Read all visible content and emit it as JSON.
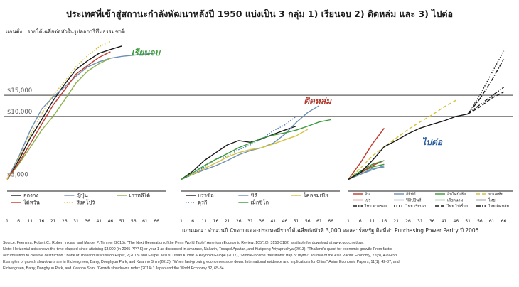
{
  "chart_data": {
    "type": "line",
    "title": "ประเทศที่เข้าสู่สถานะกำลังพัฒนาหลังปี 1950 แบ่งเป็น 3 กลุ่ม 1) เรียนจบ 2) ติดหล่ม และ 3) ไปต่อ",
    "ylabel": "แกนตั้ง : รายได้เฉลี่ยต่อหัวในรูปลอการิทึมธรรมชาติ",
    "xlabel": "แกนนอน : จำนวนปี นับจากแต่ละประเทศมีรายได้เฉลี่ยต่อหัวที่ 3,000 ดอลลาร์สหรัฐ ติดที่ค่า Purchasing Power Parity ปี 2005",
    "y_scale": "log",
    "y_ticks": [
      "$3,000",
      "$10,000",
      "$15,000"
    ],
    "y_tick_values": [
      3000,
      10000,
      15000
    ],
    "ylim": [
      2600,
      40000
    ],
    "x_ticks": [
      "1",
      "6",
      "11",
      "16",
      "21",
      "26",
      "31",
      "36",
      "41",
      "46",
      "51",
      "56",
      "61",
      "66"
    ],
    "xlim": [
      1,
      70
    ],
    "grid": false,
    "panels": [
      {
        "label": "เรียนจบ",
        "series": [
          {
            "name": "ฮ่องกง",
            "color": "#1a1a1a",
            "dash": "solid",
            "x": [
              1,
              6,
              11,
              16,
              21,
              26,
              31,
              36,
              41,
              46,
              51
            ],
            "y": [
              3000,
              4300,
              6600,
              9400,
              13500,
              18500,
              24500,
              29000,
              33500,
              36000,
              38500
            ]
          },
          {
            "name": "ญี่ปุ่น",
            "color": "#6b8fb5",
            "dash": "solid",
            "x": [
              1,
              6,
              11,
              16,
              21,
              26,
              31,
              36,
              41,
              46,
              51,
              56,
              61,
              66
            ],
            "y": [
              3000,
              4600,
              7600,
              11500,
              14500,
              17600,
              21600,
              25800,
              28500,
              30500,
              31600,
              32300,
              33000,
              33700
            ]
          },
          {
            "name": "เกาหลีใต้",
            "color": "#8bb34d",
            "dash": "solid",
            "x": [
              1,
              6,
              11,
              16,
              21,
              26,
              31,
              36,
              41,
              46
            ],
            "y": [
              3000,
              4000,
              5500,
              7700,
              10000,
              13700,
              19000,
              23800,
              27500,
              30500
            ]
          },
          {
            "name": "ไต้หวัน",
            "color": "#c0392b",
            "dash": "solid",
            "x": [
              1,
              6,
              11,
              16,
              21,
              26,
              31,
              36,
              41,
              46
            ],
            "y": [
              3000,
              4100,
              5900,
              8600,
              12400,
              16600,
              22500,
              26500,
              31000,
              34500
            ]
          },
          {
            "name": "สิงคโปร์",
            "color": "#d4c23a",
            "dash": "dot",
            "x": [
              1,
              6,
              11,
              16,
              21,
              26,
              31,
              36,
              41,
              46
            ],
            "y": [
              3000,
              4500,
              7000,
              10500,
              15000,
              19500,
              26000,
              32000,
              38000,
              42000
            ]
          }
        ]
      },
      {
        "label": "ติดหล่ม",
        "series": [
          {
            "name": "บราซิล",
            "color": "#1a1a1a",
            "dash": "solid",
            "x": [
              1,
              6,
              11,
              16,
              21,
              26,
              31,
              36,
              41,
              46,
              51
            ],
            "y": [
              3000,
              3500,
              4300,
              5000,
              5800,
              6300,
              6100,
              6500,
              7100,
              7700,
              8300
            ]
          },
          {
            "name": "ชิลี",
            "color": "#6b8fb5",
            "dash": "solid",
            "x": [
              1,
              6,
              11,
              16,
              21,
              26,
              31,
              36,
              41,
              46,
              51,
              56,
              61
            ],
            "y": [
              3000,
              3300,
              3600,
              3900,
              4300,
              4800,
              5200,
              5500,
              6000,
              7100,
              8900,
              10800,
              12300
            ]
          },
          {
            "name": "โคลอมเบีย",
            "color": "#d4c23a",
            "dash": "solid",
            "x": [
              1,
              6,
              11,
              16,
              21,
              26,
              31,
              36,
              41,
              46,
              51,
              56
            ],
            "y": [
              3000,
              3300,
              3700,
              4100,
              4600,
              5000,
              5300,
              5500,
              5900,
              6400,
              6900,
              7800
            ]
          },
          {
            "name": "ตุรกี",
            "color": "#4a7fc1",
            "dash": "dot",
            "x": [
              1,
              6,
              11,
              16,
              21,
              26,
              31,
              36,
              41,
              46,
              51
            ],
            "y": [
              3000,
              3300,
              3800,
              4400,
              4700,
              5300,
              5800,
              6500,
              7600,
              8500,
              10000
            ]
          },
          {
            "name": "เม็กซิโก",
            "color": "#3a9a3a",
            "dash": "solid",
            "x": [
              1,
              6,
              11,
              16,
              21,
              26,
              31,
              36,
              41,
              46,
              51,
              56,
              61,
              66
            ],
            "y": [
              3000,
              3400,
              3900,
              4400,
              4900,
              5500,
              6000,
              6600,
              7000,
              7300,
              7700,
              8300,
              9000,
              9400
            ]
          }
        ]
      },
      {
        "label": "ไปต่อ",
        "series": [
          {
            "name": "จีน",
            "color": "#c0392b",
            "dash": "solid",
            "x": [
              1,
              6,
              11,
              16
            ],
            "y": [
              3000,
              4100,
              5900,
              8000
            ]
          },
          {
            "name": "อียิปต์",
            "color": "#6b8fb5",
            "dash": "solid",
            "x": [
              1,
              6,
              11,
              16
            ],
            "y": [
              3000,
              3300,
              3700,
              3800
            ]
          },
          {
            "name": "อินโดนีเซีย",
            "color": "#3a9a3a",
            "dash": "solid",
            "x": [
              1,
              6,
              11,
              16
            ],
            "y": [
              3000,
              3400,
              3800,
              4000
            ]
          },
          {
            "name": "มาเลเซีย",
            "color": "#d4c23a",
            "dash": "dash",
            "x": [
              1,
              6,
              11,
              16,
              21,
              26,
              31,
              36,
              41,
              46
            ],
            "y": [
              3000,
              3700,
              4700,
              5600,
              6600,
              7800,
              9000,
              10300,
              12000,
              13600
            ]
          },
          {
            "name": "เปรู",
            "color": "#c0392b",
            "dash": "solid",
            "x": [
              1,
              6,
              11,
              16
            ],
            "y": [
              3000,
              3400,
              3900,
              4300
            ]
          },
          {
            "name": "ฟิลิปปินส์",
            "color": "#6b8fb5",
            "dash": "solid",
            "x": [
              1,
              6,
              11,
              16
            ],
            "y": [
              3000,
              3300,
              3600,
              3900
            ]
          },
          {
            "name": "เวียดนาม",
            "color": "#3a9a3a",
            "dash": "solid",
            "x": [
              1,
              6,
              11,
              16
            ],
            "y": [
              3000,
              3500,
              4000,
              4300
            ]
          },
          {
            "name": "ไทย",
            "color": "#1a1a1a",
            "dash": "solid",
            "x": [
              1,
              6,
              11,
              16,
              21,
              26,
              31,
              36,
              41,
              46,
              51
            ],
            "y": [
              3000,
              3400,
              4300,
              5600,
              6300,
              7200,
              8000,
              8600,
              9200,
              10000,
              10500
            ]
          },
          {
            "name": "ไทย ตามรอย",
            "color": "#1a1a1a",
            "dash": "dashdot",
            "x": [
              51,
              56,
              61,
              66
            ],
            "y": [
              10500,
              14000,
              20000,
              30000
            ]
          },
          {
            "name": "ไทย เรียนจบ",
            "color": "#1a1a1a",
            "dash": "dot",
            "x": [
              51,
              56,
              61,
              66
            ],
            "y": [
              10500,
              15000,
              23000,
              35000
            ]
          },
          {
            "name": "ไทย ไปเรื่อย",
            "color": "#1a1a1a",
            "dash": "dash",
            "x": [
              51,
              56,
              61,
              66
            ],
            "y": [
              10500,
              12000,
              14200,
              16000
            ]
          },
          {
            "name": "ไทย ติดหล่ม",
            "color": "#1a1a1a",
            "dash": "dashdotdot",
            "x": [
              51,
              56,
              61,
              66
            ],
            "y": [
              10500,
              12500,
              14800,
              17500
            ]
          }
        ]
      }
    ]
  },
  "notes": [
    "Source: Feenstra, Robert C., Robert Inklaar and Marcel P. Timmer (2015), \"The Next Generation of the Penn World Table\" American Economic Review, 105(10), 3150-3182, available for download at www.ggdc.net/pwt",
    "Note: Horizontal axis shows the time elapsed since attaining $3,000 (in 2005 PPP $) or year 1 as discussed in Amarase, Nakarin, Tosapol Apaitan, and Kiatipong Ariyapruchya (2013). \"Thailand's quest for economic growth: From factor",
    "accumulation to creative destruction.\" Bank of Thailand Discussion Paper, 2(2013) and Felipe, Jesus, Utsav Kumar & Reynold Galope (2017), \"Middle-income transitions: trap or myth?\" Journal of the Asia Pacific Economy, 22(3), 429-453.",
    "Examples of growth slowdowns are in Eichengreen, Barry, Donghyun Park, and Kwanho Shin (2012), \"When fast-growing economies slow down: International evidence and implications for China\" Asian Economic Papers, 11(1), 42-87, and",
    "Eichengreen, Barry, Donghyun Park, and Kwanho Shin. \"Growth slowdowns redux (2014).\" Japan and the World Economy 32, 65-84."
  ]
}
